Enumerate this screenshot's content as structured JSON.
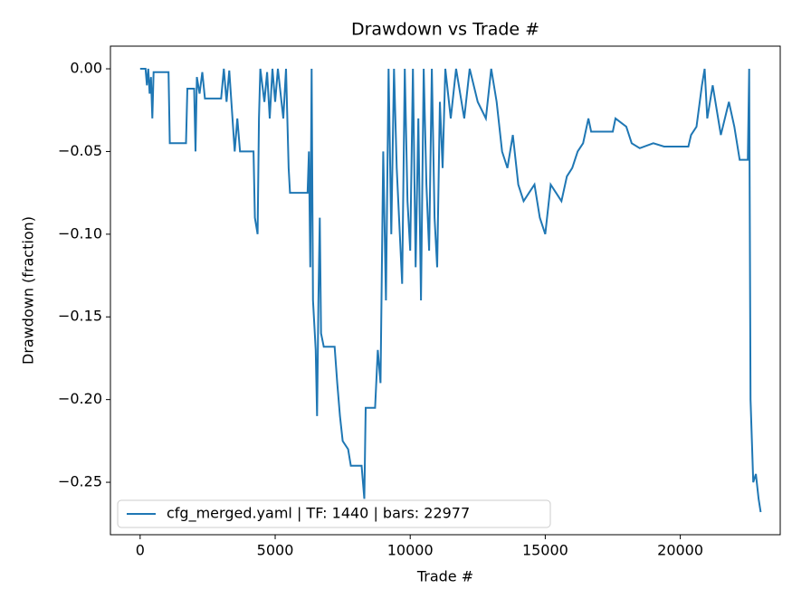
{
  "chart_data": {
    "type": "line",
    "title": "Drawdown vs Trade #",
    "xlabel": "Trade #",
    "ylabel": "Drawdown (fraction)",
    "legend": "lower left",
    "xlim": [
      -1100,
      23700
    ],
    "ylim": [
      -0.2817,
      0.0137
    ],
    "xticks": [
      0,
      5000,
      10000,
      15000,
      20000
    ],
    "yticks": [
      {
        "value": 0,
        "label": "0.00"
      },
      {
        "value": -0.05,
        "label": "−0.05"
      },
      {
        "value": -0.1,
        "label": "−0.10"
      },
      {
        "value": -0.15,
        "label": "−0.15"
      },
      {
        "value": -0.2,
        "label": "−0.20"
      },
      {
        "value": -0.25,
        "label": "−0.25"
      }
    ],
    "x": [
      0,
      200,
      250,
      300,
      350,
      400,
      450,
      500,
      800,
      1050,
      1100,
      1700,
      1750,
      2000,
      2050,
      2100,
      2200,
      2300,
      2400,
      3000,
      3100,
      3200,
      3300,
      3500,
      3600,
      3700,
      4200,
      4250,
      4350,
      4400,
      4450,
      4600,
      4700,
      4800,
      4900,
      5000,
      5100,
      5300,
      5400,
      5500,
      5550,
      6200,
      6250,
      6300,
      6350,
      6400,
      6500,
      6550,
      6600,
      6650,
      6700,
      6800,
      7200,
      7300,
      7400,
      7500,
      7700,
      7800,
      8200,
      8300,
      8350,
      8700,
      8800,
      8900,
      9000,
      9100,
      9200,
      9300,
      9400,
      9500,
      9700,
      9800,
      9900,
      10000,
      10100,
      10200,
      10300,
      10400,
      10500,
      10600,
      10700,
      10800,
      10900,
      11000,
      11100,
      11200,
      11300,
      11500,
      11700,
      12000,
      12200,
      12500,
      12800,
      13000,
      13200,
      13400,
      13600,
      13800,
      14000,
      14200,
      14400,
      14600,
      14800,
      15000,
      15200,
      15400,
      15600,
      15800,
      16000,
      16200,
      16400,
      16600,
      16700,
      17500,
      17600,
      18000,
      18200,
      18500,
      19000,
      19400,
      20300,
      20400,
      20600,
      20800,
      20900,
      21000,
      21200,
      21500,
      21800,
      22000,
      22200,
      22500,
      22550,
      22600,
      22700,
      22800,
      22900,
      22977
    ],
    "series": [
      {
        "name": "cfg_merged.yaml | TF: 1440 | bars: 22977",
        "color": "#1f77b4",
        "values": [
          0,
          0,
          -0.01,
          0,
          -0.015,
          -0.005,
          -0.03,
          -0.002,
          -0.002,
          -0.002,
          -0.045,
          -0.045,
          -0.012,
          -0.012,
          -0.05,
          -0.005,
          -0.015,
          -0.002,
          -0.018,
          -0.018,
          0,
          -0.02,
          -0.001,
          -0.05,
          -0.03,
          -0.05,
          -0.05,
          -0.09,
          -0.1,
          -0.03,
          0,
          -0.02,
          -0.002,
          -0.03,
          0,
          -0.02,
          0,
          -0.03,
          0,
          -0.06,
          -0.075,
          -0.075,
          -0.05,
          -0.12,
          0,
          -0.14,
          -0.17,
          -0.21,
          -0.14,
          -0.09,
          -0.16,
          -0.168,
          -0.168,
          -0.19,
          -0.21,
          -0.225,
          -0.23,
          -0.24,
          -0.24,
          -0.26,
          -0.205,
          -0.205,
          -0.17,
          -0.19,
          -0.05,
          -0.14,
          0,
          -0.1,
          0,
          -0.06,
          -0.13,
          0,
          -0.08,
          -0.11,
          0,
          -0.12,
          -0.03,
          -0.14,
          0,
          -0.07,
          -0.11,
          0,
          -0.09,
          -0.12,
          -0.02,
          -0.06,
          0,
          -0.03,
          0,
          -0.03,
          0,
          -0.02,
          -0.03,
          0,
          -0.02,
          -0.05,
          -0.06,
          -0.04,
          -0.07,
          -0.08,
          -0.075,
          -0.07,
          -0.09,
          -0.1,
          -0.07,
          -0.075,
          -0.08,
          -0.065,
          -0.06,
          -0.05,
          -0.045,
          -0.03,
          -0.038,
          -0.038,
          -0.03,
          -0.035,
          -0.045,
          -0.048,
          -0.045,
          -0.047,
          -0.047,
          -0.04,
          -0.035,
          -0.01,
          0,
          -0.03,
          -0.01,
          -0.04,
          -0.02,
          -0.035,
          -0.055,
          -0.055,
          0,
          -0.2,
          -0.25,
          -0.245,
          -0.26,
          -0.268
        ]
      }
    ]
  }
}
